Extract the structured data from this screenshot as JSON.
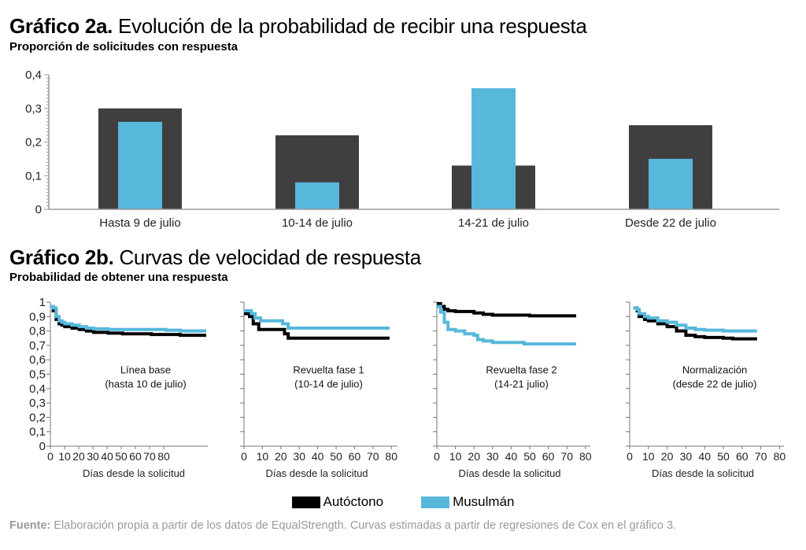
{
  "colors": {
    "autoctono": "#3f3f3f",
    "autoctono_line": "#000000",
    "musulman": "#57b8dc",
    "axis": "#999999",
    "source_text": "#9a9a9a"
  },
  "chart_data": [
    {
      "type": "bar",
      "title_bold": "Gráfico 2a.",
      "title_rest": " Evolución de la probabilidad de recibir una respuesta",
      "subtitle": "Proporción de solicitudes con respuesta",
      "xlabel": "",
      "ylabel": "",
      "ylim": [
        0,
        0.4
      ],
      "yticks": [
        0,
        0.1,
        0.2,
        0.3,
        0.4
      ],
      "ytick_labels": [
        "0",
        "0,1",
        "0,2",
        "0,3",
        "0,4"
      ],
      "grid": false,
      "categories": [
        "Hasta 9 de julio",
        "10-14 de julio",
        "14-21 de julio",
        "Desde 22 de julio"
      ],
      "series": [
        {
          "name": "Autóctono",
          "values": [
            0.3,
            0.22,
            0.13,
            0.25
          ]
        },
        {
          "name": "Musulmán",
          "values": [
            0.26,
            0.08,
            0.36,
            0.15
          ]
        }
      ],
      "layout": "overlapped (narrow Musulmán bar drawn in front of wide Autóctono bar)"
    },
    {
      "type": "line",
      "title_bold": "Gráfico 2b.",
      "title_rest": " Curvas de velocidad de respuesta",
      "subtitle": "Probabilidad de obtener una respuesta",
      "ylim": [
        0,
        1
      ],
      "yticks": [
        0,
        0.1,
        0.2,
        0.3,
        0.4,
        0.5,
        0.6,
        0.7,
        0.8,
        0.9,
        1
      ],
      "ytick_labels": [
        "0",
        "0,1",
        "0,2",
        "0,3",
        "0,4",
        "0,5",
        "0,6",
        "0,7",
        "0,8",
        "0,9",
        "1"
      ],
      "xlabel": "Días desde la solicitud",
      "step": true,
      "panels": [
        {
          "label_line1": "Línea base",
          "label_line2": "(hasta 10 de julio)",
          "xlim": [
            0,
            110
          ],
          "xtick_labels": [
            "0",
            "10",
            "20",
            "30",
            "40",
            "50",
            "60",
            "70",
            "80"
          ],
          "compressed_ticks": true,
          "series": [
            {
              "name": "Autóctono",
              "x": [
                0,
                2,
                4,
                6,
                8,
                10,
                15,
                20,
                25,
                30,
                40,
                50,
                60,
                70,
                80,
                90,
                100,
                108
              ],
              "y": [
                0.97,
                0.94,
                0.88,
                0.85,
                0.84,
                0.83,
                0.82,
                0.81,
                0.8,
                0.79,
                0.785,
                0.78,
                0.78,
                0.775,
                0.775,
                0.77,
                0.77,
                0.77
              ]
            },
            {
              "name": "Musulmán",
              "x": [
                0,
                2,
                4,
                6,
                8,
                10,
                15,
                20,
                25,
                30,
                40,
                50,
                60,
                70,
                80,
                90,
                100,
                108
              ],
              "y": [
                0.97,
                0.96,
                0.9,
                0.87,
                0.86,
                0.85,
                0.84,
                0.83,
                0.82,
                0.815,
                0.81,
                0.81,
                0.81,
                0.81,
                0.805,
                0.8,
                0.8,
                0.8
              ]
            }
          ]
        },
        {
          "label_line1": "Revuelta fase 1",
          "label_line2": "(10-14 de julio)",
          "xlim": [
            0,
            80
          ],
          "xtick_labels": [
            "0",
            "10",
            "20",
            "30",
            "40",
            "50",
            "60",
            "70",
            "80"
          ],
          "series": [
            {
              "name": "Autóctono",
              "x": [
                0,
                3,
                5,
                8,
                22,
                24,
                79
              ],
              "y": [
                0.92,
                0.9,
                0.85,
                0.81,
                0.78,
                0.75,
                0.75
              ]
            },
            {
              "name": "Musulmán",
              "x": [
                0,
                4,
                6,
                9,
                21,
                24,
                79
              ],
              "y": [
                0.94,
                0.92,
                0.89,
                0.87,
                0.85,
                0.82,
                0.82
              ]
            }
          ]
        },
        {
          "label_line1": "Revuelta fase 2",
          "label_line2": "(14-21 julio)",
          "xlim": [
            0,
            80
          ],
          "xtick_labels": [
            "0",
            "10",
            "20",
            "30",
            "40",
            "50",
            "60",
            "70",
            "80"
          ],
          "series": [
            {
              "name": "Autóctono",
              "x": [
                0,
                2,
                4,
                6,
                10,
                20,
                25,
                30,
                40,
                50,
                60,
                75
              ],
              "y": [
                0.99,
                0.97,
                0.95,
                0.94,
                0.935,
                0.925,
                0.915,
                0.91,
                0.91,
                0.905,
                0.905,
                0.905
              ]
            },
            {
              "name": "Musulmán",
              "x": [
                0,
                2,
                4,
                6,
                10,
                15,
                20,
                22,
                25,
                30,
                47,
                75
              ],
              "y": [
                0.97,
                0.93,
                0.86,
                0.81,
                0.8,
                0.78,
                0.77,
                0.74,
                0.73,
                0.72,
                0.71,
                0.71
              ]
            }
          ]
        },
        {
          "label_line1": "Normalización",
          "label_line2": "(desde 22 de julio)",
          "xlim": [
            0,
            80
          ],
          "xtick_labels": [
            "0",
            "10",
            "20",
            "30",
            "40",
            "50",
            "60",
            "70",
            "80"
          ],
          "series": [
            {
              "name": "Autóctono",
              "x": [
                2,
                4,
                5,
                8,
                10,
                15,
                20,
                25,
                30,
                35,
                40,
                45,
                50,
                55,
                60,
                68
              ],
              "y": [
                0.96,
                0.94,
                0.9,
                0.88,
                0.87,
                0.85,
                0.83,
                0.8,
                0.77,
                0.76,
                0.755,
                0.755,
                0.75,
                0.745,
                0.745,
                0.745
              ]
            },
            {
              "name": "Musulmán",
              "x": [
                2,
                4,
                5,
                8,
                10,
                15,
                20,
                25,
                30,
                35,
                40,
                45,
                50,
                55,
                60,
                68
              ],
              "y": [
                0.96,
                0.95,
                0.92,
                0.9,
                0.89,
                0.87,
                0.86,
                0.84,
                0.82,
                0.81,
                0.805,
                0.805,
                0.8,
                0.8,
                0.8,
                0.8
              ]
            }
          ]
        }
      ]
    }
  ],
  "legend": {
    "position": "bottom-center",
    "items": [
      {
        "label": "Autóctono"
      },
      {
        "label": "Musulmán"
      }
    ]
  },
  "source": {
    "label": "Fuente:",
    "text": " Elaboración propia a partir de los datos de EqualStrength. Curvas estimadas a partir de regresiones de Cox en el gráfico 3."
  }
}
